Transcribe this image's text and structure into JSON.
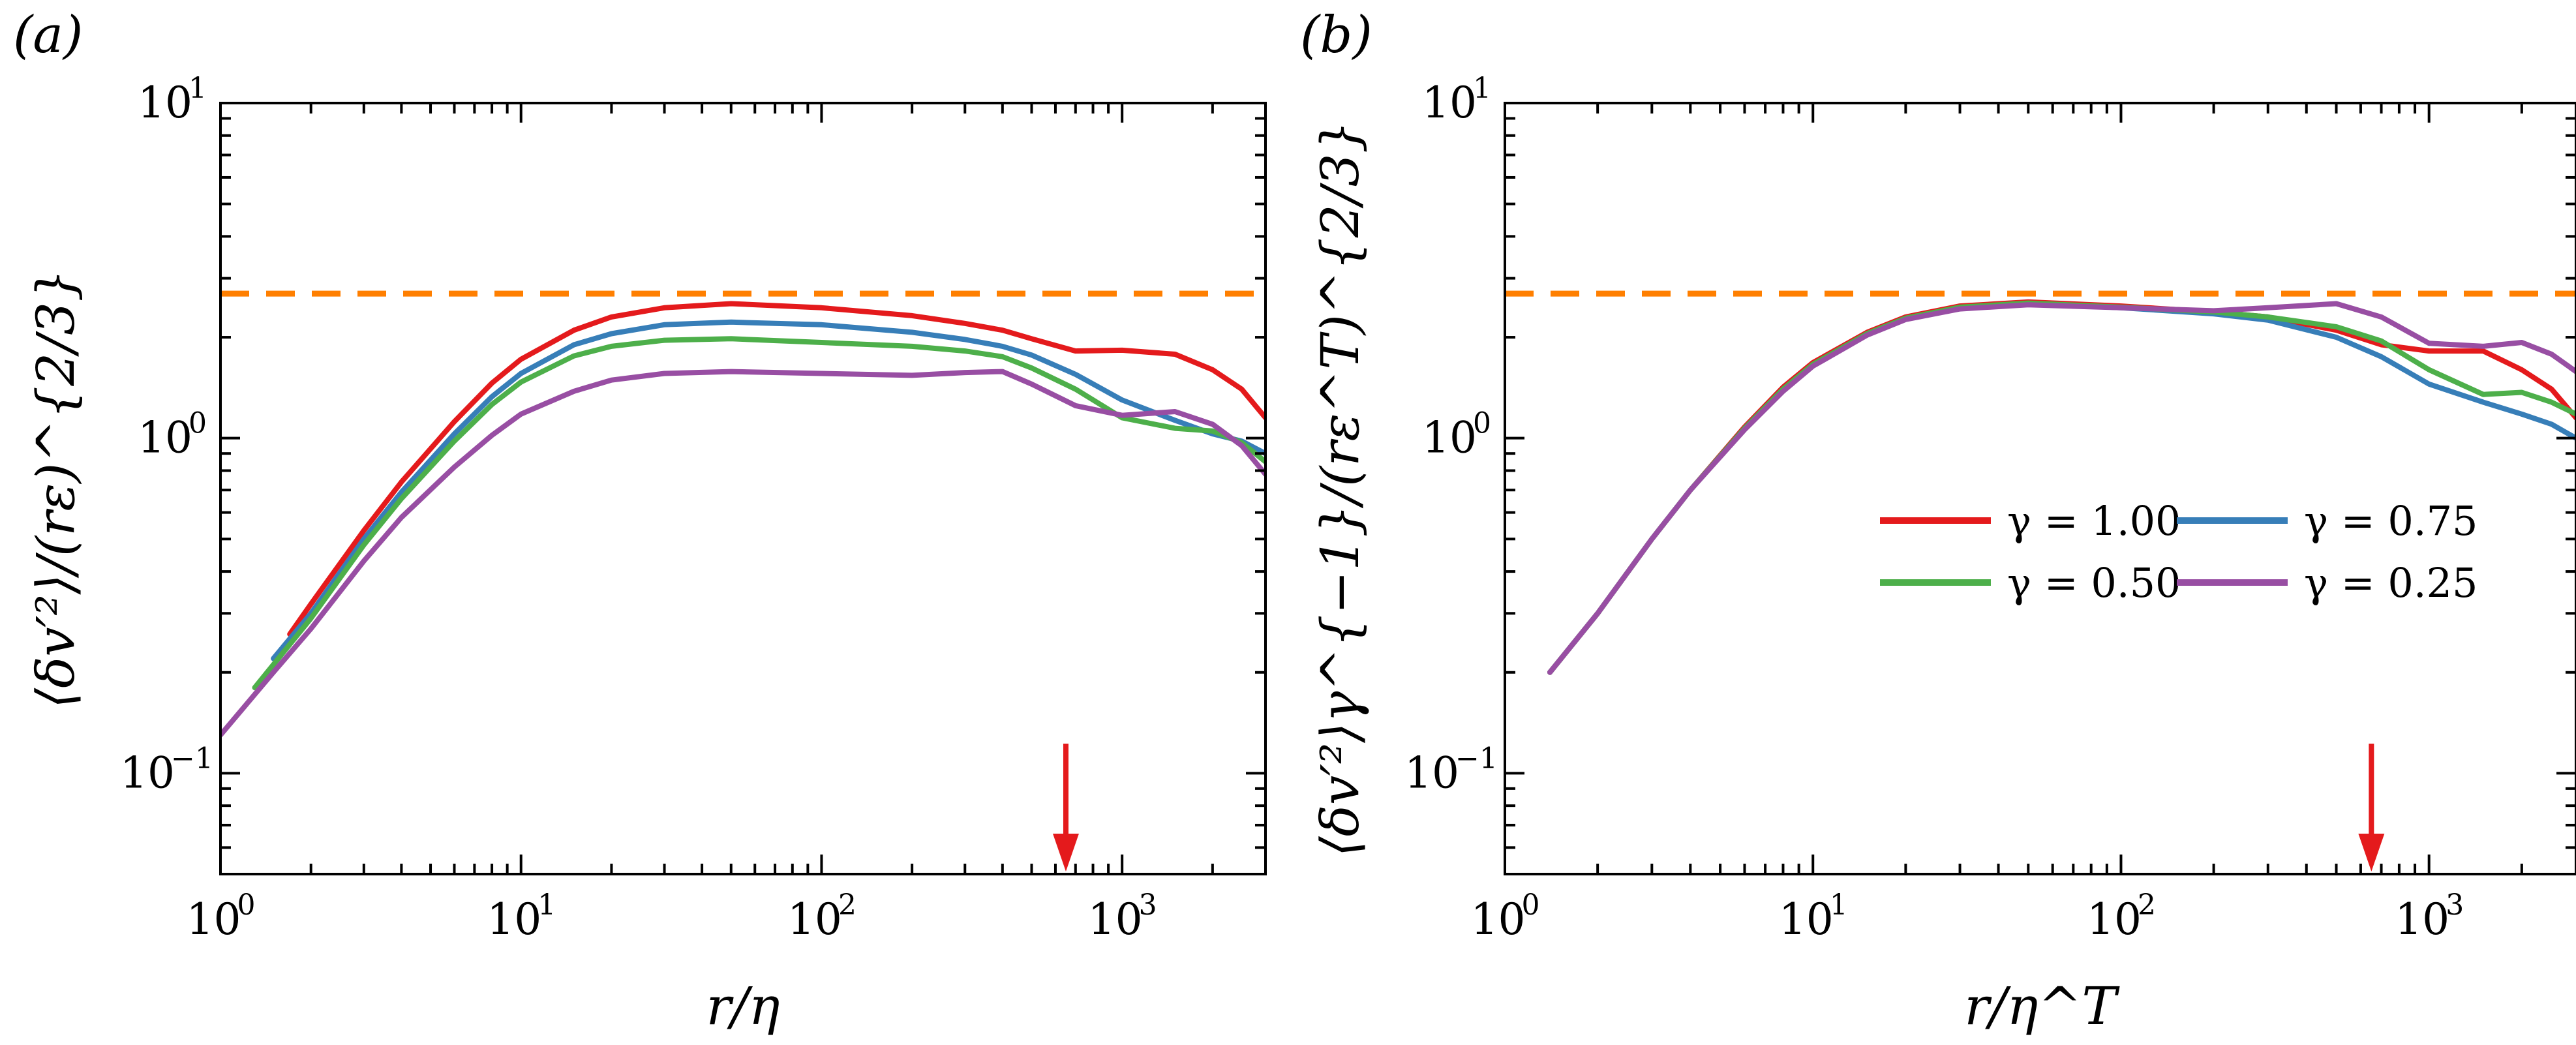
{
  "colors": {
    "red": "#e41a1c",
    "blue": "#377eb8",
    "green": "#4daf4a",
    "purple": "#984ea3",
    "orange": "#ff7f00",
    "arrow": "#e41a1c"
  },
  "chart_data": [
    {
      "panel_label": "(a)",
      "type": "line",
      "xlabel": "r/η",
      "ylabel": "⟨δv′²⟩/(rε)^{2/3}",
      "xscale": "log",
      "yscale": "log",
      "xlim": [
        1,
        3000
      ],
      "ylim": [
        0.05,
        10
      ],
      "x_tick_labels": [
        {
          "base": "10",
          "exp": "0"
        },
        {
          "base": "10",
          "exp": "1"
        },
        {
          "base": "10",
          "exp": "2"
        },
        {
          "base": "10",
          "exp": "3"
        }
      ],
      "y_tick_labels": [
        {
          "base": "10",
          "exp": "−1"
        },
        {
          "base": "10",
          "exp": "0"
        },
        {
          "base": "10",
          "exp": "1"
        }
      ],
      "hline": {
        "y": 2.7,
        "style": "dashed",
        "color": "#ff7f00"
      },
      "arrow": {
        "x": 650,
        "direction": "down",
        "color": "#e41a1c"
      },
      "series": [
        {
          "legend": "γ = 1.00",
          "color": "#e41a1c",
          "x": [
            1.7,
            2,
            3,
            4,
            6,
            8,
            10,
            15,
            20,
            30,
            50,
            100,
            200,
            300,
            400,
            500,
            700,
            1000,
            1500,
            2000,
            2500,
            3000
          ],
          "y": [
            0.26,
            0.32,
            0.53,
            0.74,
            1.12,
            1.46,
            1.72,
            2.1,
            2.3,
            2.45,
            2.52,
            2.45,
            2.32,
            2.2,
            2.1,
            1.98,
            1.82,
            1.83,
            1.78,
            1.6,
            1.4,
            1.15
          ]
        },
        {
          "legend": "γ = 0.75",
          "color": "#377eb8",
          "x": [
            1.5,
            2,
            3,
            4,
            6,
            8,
            10,
            15,
            20,
            30,
            50,
            100,
            200,
            300,
            400,
            500,
            700,
            1000,
            1500,
            2000,
            2500,
            3000
          ],
          "y": [
            0.22,
            0.3,
            0.5,
            0.69,
            1.03,
            1.33,
            1.56,
            1.9,
            2.05,
            2.18,
            2.22,
            2.18,
            2.07,
            1.97,
            1.88,
            1.77,
            1.55,
            1.3,
            1.13,
            1.03,
            0.98,
            0.9
          ]
        },
        {
          "legend": "γ = 0.50",
          "color": "#4daf4a",
          "x": [
            1.3,
            2,
            3,
            4,
            6,
            8,
            10,
            15,
            20,
            30,
            50,
            100,
            200,
            300,
            400,
            500,
            700,
            1000,
            1500,
            2000,
            2500,
            3000
          ],
          "y": [
            0.18,
            0.29,
            0.48,
            0.66,
            0.98,
            1.26,
            1.47,
            1.76,
            1.88,
            1.96,
            1.98,
            1.93,
            1.88,
            1.82,
            1.75,
            1.62,
            1.4,
            1.15,
            1.07,
            1.05,
            0.97,
            0.85
          ]
        },
        {
          "legend": "γ = 0.25",
          "color": "#984ea3",
          "x": [
            1,
            1.5,
            2,
            3,
            4,
            6,
            8,
            10,
            15,
            20,
            30,
            50,
            100,
            200,
            300,
            400,
            500,
            700,
            1000,
            1500,
            2000,
            2500,
            3000
          ],
          "y": [
            0.13,
            0.2,
            0.27,
            0.43,
            0.58,
            0.82,
            1.02,
            1.18,
            1.38,
            1.49,
            1.56,
            1.58,
            1.56,
            1.54,
            1.57,
            1.58,
            1.45,
            1.25,
            1.17,
            1.2,
            1.1,
            0.95,
            0.78
          ]
        }
      ]
    },
    {
      "panel_label": "(b)",
      "type": "line",
      "xlabel": "r/η^T",
      "ylabel": "⟨δv′²⟩γ^{−1}/(rε^T)^{2/3}",
      "xscale": "log",
      "yscale": "log",
      "xlim": [
        1,
        3000
      ],
      "ylim": [
        0.05,
        10
      ],
      "x_tick_labels": [
        {
          "base": "10",
          "exp": "0"
        },
        {
          "base": "10",
          "exp": "1"
        },
        {
          "base": "10",
          "exp": "2"
        },
        {
          "base": "10",
          "exp": "3"
        }
      ],
      "y_tick_labels": [
        {
          "base": "10",
          "exp": "−1"
        },
        {
          "base": "10",
          "exp": "0"
        },
        {
          "base": "10",
          "exp": "1"
        }
      ],
      "hline": {
        "y": 2.7,
        "style": "dashed",
        "color": "#ff7f00"
      },
      "arrow": {
        "x": 650,
        "direction": "down",
        "color": "#e41a1c"
      },
      "legend_placement": "center-right",
      "series": [
        {
          "legend": "γ = 1.00",
          "color": "#e41a1c",
          "x": [
            1.4,
            2,
            3,
            4,
            6,
            8,
            10,
            15,
            20,
            30,
            50,
            100,
            200,
            300,
            500,
            700,
            1000,
            1500,
            2000,
            2500,
            3000
          ],
          "y": [
            0.2,
            0.3,
            0.5,
            0.7,
            1.08,
            1.42,
            1.68,
            2.07,
            2.3,
            2.48,
            2.55,
            2.48,
            2.38,
            2.3,
            2.1,
            1.9,
            1.82,
            1.82,
            1.6,
            1.4,
            1.15
          ]
        },
        {
          "legend": "γ = 0.75",
          "color": "#377eb8",
          "x": [
            1.4,
            2,
            3,
            4,
            6,
            8,
            10,
            15,
            20,
            30,
            50,
            100,
            200,
            300,
            500,
            700,
            1000,
            1500,
            2000,
            2500,
            3000
          ],
          "y": [
            0.2,
            0.3,
            0.5,
            0.7,
            1.07,
            1.4,
            1.66,
            2.05,
            2.28,
            2.45,
            2.52,
            2.45,
            2.35,
            2.25,
            2.0,
            1.75,
            1.45,
            1.28,
            1.18,
            1.1,
            1.0
          ]
        },
        {
          "legend": "γ = 0.50",
          "color": "#4daf4a",
          "x": [
            1.4,
            2,
            3,
            4,
            6,
            8,
            10,
            15,
            20,
            30,
            50,
            100,
            200,
            300,
            500,
            700,
            1000,
            1500,
            2000,
            2500,
            3000
          ],
          "y": [
            0.2,
            0.3,
            0.5,
            0.7,
            1.07,
            1.4,
            1.66,
            2.05,
            2.28,
            2.46,
            2.53,
            2.46,
            2.38,
            2.3,
            2.15,
            1.95,
            1.6,
            1.35,
            1.37,
            1.28,
            1.18
          ]
        },
        {
          "legend": "γ = 0.25",
          "color": "#984ea3",
          "x": [
            1.4,
            2,
            3,
            4,
            6,
            8,
            10,
            15,
            20,
            30,
            50,
            100,
            200,
            300,
            500,
            700,
            1000,
            1500,
            2000,
            2500,
            3000
          ],
          "y": [
            0.2,
            0.3,
            0.5,
            0.7,
            1.06,
            1.38,
            1.64,
            2.03,
            2.26,
            2.43,
            2.5,
            2.45,
            2.4,
            2.45,
            2.52,
            2.3,
            1.92,
            1.88,
            1.93,
            1.78,
            1.58
          ]
        }
      ]
    }
  ]
}
